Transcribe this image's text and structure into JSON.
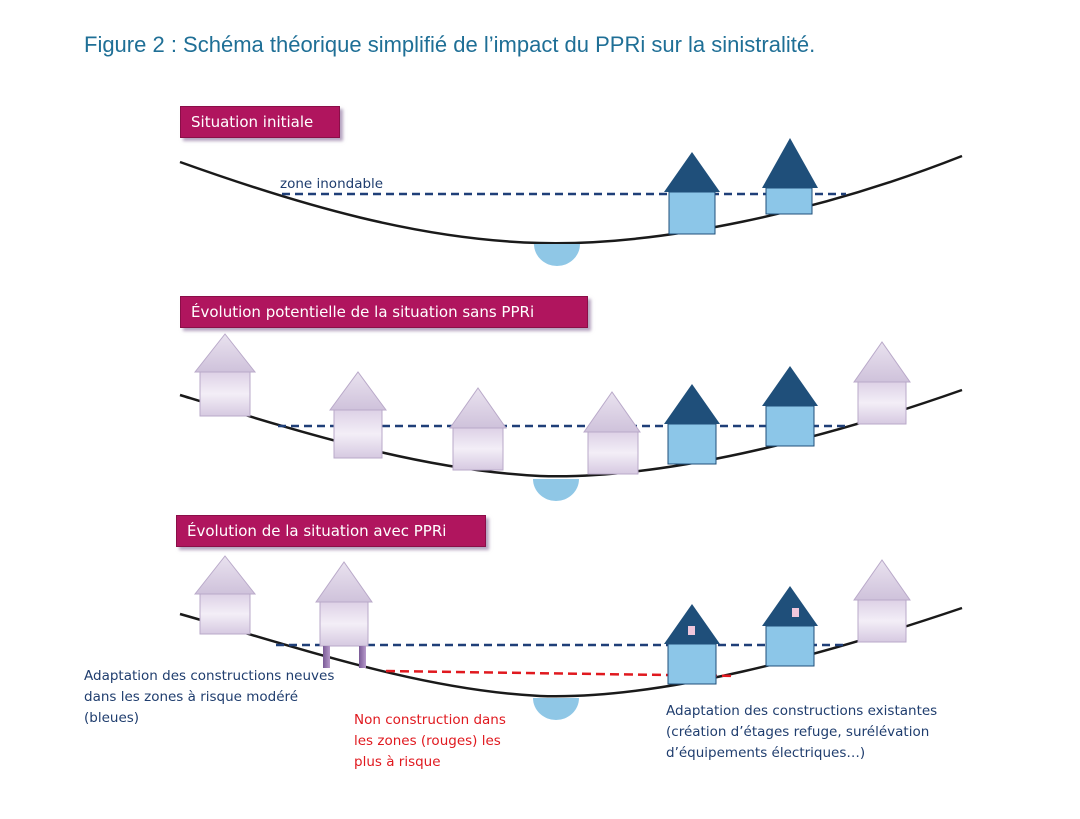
{
  "figure": {
    "title": "Figure 2 : Schéma théorique simplifié de l’impact du PPRi sur la sinistralité."
  },
  "panels": [
    {
      "label": "Situation initiale",
      "flood_zone_label": "zone inondable"
    },
    {
      "label": "Évolution potentielle de la situation sans PPRi"
    },
    {
      "label": "Évolution de la situation avec PPRi"
    }
  ],
  "notes": {
    "blue_zone": [
      "Adaptation des constructions neuves",
      "dans les zones à risque modéré",
      "(bleues)"
    ],
    "red_zone": [
      "Non construction dans",
      "les zones (rouges) les",
      "plus à risque"
    ],
    "existing": [
      "Adaptation des constructions existantes",
      "(création d’étages refuge, surélévation",
      "d’équipements électriques…)"
    ]
  },
  "colors": {
    "title": "#1f6f96",
    "label_bg": "#b0155e",
    "flood_line": "#1f3f78",
    "red_line": "#e0191f",
    "exposed_house_roof": "#1f4f7a",
    "exposed_house_body": "#8cc6e8",
    "safe_house_roof": "#ddd3e6",
    "safe_house_body": "#e6dced",
    "river": "#8fc7e6",
    "ground": "#1a1a1a"
  },
  "icons": [
    "exposed-house-icon",
    "safe-house-icon",
    "river-icon",
    "stilts-icon",
    "refuge-window-icon"
  ]
}
